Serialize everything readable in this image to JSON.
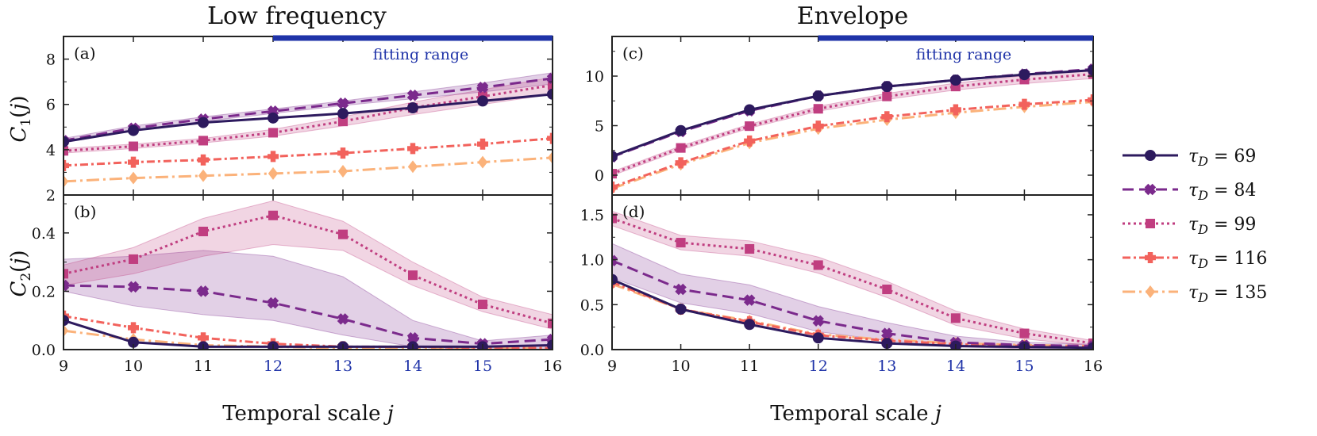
{
  "columns": [
    {
      "title": "Low frequency",
      "xlabel": "Temporal scale j"
    },
    {
      "title": "Envelope",
      "xlabel": "Temporal scale j"
    }
  ],
  "fitting_range_label": "fitting range",
  "colors": {
    "tau_69": "#2d1a5e",
    "tau_84": "#7b2a8c",
    "tau_99": "#c03e80",
    "tau_116": "#f2625c",
    "tau_135": "#fbb27a",
    "fitting_range": "#1f33a8"
  },
  "legend": [
    {
      "label": "τ_D = 69",
      "marker": "circle",
      "dash": "solid"
    },
    {
      "label": "τ_D = 84",
      "marker": "x-cross",
      "dash": "dashed"
    },
    {
      "label": "τ_D = 99",
      "marker": "square",
      "dash": "dotted"
    },
    {
      "label": "τ_D = 116",
      "marker": "plus",
      "dash": "dashdot"
    },
    {
      "label": "τ_D = 135",
      "marker": "diamond",
      "dash": "longdashdot"
    }
  ],
  "chart_data": [
    {
      "panel": "(a)",
      "type": "line",
      "title": "Low frequency",
      "ylabel": "C_1(j)",
      "ylim": [
        2,
        9
      ],
      "yticks": [
        2,
        4,
        6,
        8
      ],
      "x": [
        9,
        10,
        11,
        12,
        13,
        14,
        15,
        16
      ],
      "xlim": [
        9,
        16
      ],
      "fitting_range": [
        12,
        16
      ],
      "series": [
        {
          "name": "τ_D = 69",
          "values": [
            4.35,
            4.85,
            5.2,
            5.4,
            5.6,
            5.85,
            6.15,
            6.45
          ]
        },
        {
          "name": "τ_D = 84",
          "values": [
            4.4,
            4.95,
            5.35,
            5.7,
            6.05,
            6.4,
            6.75,
            7.15
          ],
          "band": [
            [
              4.3,
              4.5
            ],
            [
              4.85,
              5.05
            ],
            [
              5.25,
              5.45
            ],
            [
              5.6,
              5.8
            ],
            [
              5.95,
              6.15
            ],
            [
              6.25,
              6.55
            ],
            [
              6.55,
              6.95
            ],
            [
              6.9,
              7.4
            ]
          ]
        },
        {
          "name": "τ_D = 99",
          "values": [
            3.95,
            4.15,
            4.4,
            4.75,
            5.25,
            5.85,
            6.35,
            6.85
          ],
          "band": [
            [
              3.85,
              4.05
            ],
            [
              4.05,
              4.25
            ],
            [
              4.3,
              4.5
            ],
            [
              4.6,
              4.9
            ],
            [
              5.05,
              5.45
            ],
            [
              5.55,
              6.1
            ],
            [
              6.0,
              6.65
            ],
            [
              6.45,
              7.2
            ]
          ]
        },
        {
          "name": "τ_D = 116",
          "values": [
            3.3,
            3.45,
            3.55,
            3.7,
            3.85,
            4.05,
            4.25,
            4.5
          ]
        },
        {
          "name": "τ_D = 135",
          "values": [
            2.6,
            2.75,
            2.85,
            2.95,
            3.05,
            3.25,
            3.45,
            3.65
          ]
        }
      ]
    },
    {
      "panel": "(b)",
      "type": "line",
      "ylabel": "C_2(j)",
      "ylim": [
        0,
        0.53
      ],
      "yticks": [
        0.0,
        0.2,
        0.4
      ],
      "x": [
        9,
        10,
        11,
        12,
        13,
        14,
        15,
        16
      ],
      "xlim": [
        9,
        16
      ],
      "xlabel": "Temporal scale j",
      "series": [
        {
          "name": "τ_D = 69",
          "values": [
            0.1,
            0.025,
            0.01,
            0.01,
            0.01,
            0.01,
            0.01,
            0.015
          ]
        },
        {
          "name": "τ_D = 84",
          "values": [
            0.22,
            0.215,
            0.2,
            0.16,
            0.105,
            0.04,
            0.02,
            0.035
          ],
          "band": [
            [
              0.2,
              0.31
            ],
            [
              0.15,
              0.32
            ],
            [
              0.12,
              0.34
            ],
            [
              0.1,
              0.32
            ],
            [
              0.05,
              0.25
            ],
            [
              0.01,
              0.1
            ],
            [
              0.0,
              0.03
            ],
            [
              0.0,
              0.05
            ]
          ]
        },
        {
          "name": "τ_D = 99",
          "values": [
            0.26,
            0.31,
            0.405,
            0.46,
            0.395,
            0.255,
            0.155,
            0.09
          ],
          "band": [
            [
              0.22,
              0.29
            ],
            [
              0.26,
              0.35
            ],
            [
              0.32,
              0.45
            ],
            [
              0.36,
              0.51
            ],
            [
              0.34,
              0.44
            ],
            [
              0.22,
              0.3
            ],
            [
              0.13,
              0.18
            ],
            [
              0.07,
              0.12
            ]
          ]
        },
        {
          "name": "τ_D = 116",
          "values": [
            0.115,
            0.075,
            0.04,
            0.02,
            0.01,
            0.01,
            0.005,
            0.005
          ]
        },
        {
          "name": "τ_D = 135",
          "values": [
            0.065,
            0.035,
            0.015,
            0.01,
            0.005,
            0.005,
            0.005,
            0.005
          ]
        }
      ]
    },
    {
      "panel": "(c)",
      "type": "line",
      "title": "Envelope",
      "ylim": [
        -2,
        14
      ],
      "yticks": [
        0,
        5,
        10
      ],
      "x": [
        9,
        10,
        11,
        12,
        13,
        14,
        15,
        16
      ],
      "xlim": [
        9,
        16
      ],
      "fitting_range": [
        12,
        16
      ],
      "series": [
        {
          "name": "τ_D = 69",
          "values": [
            1.9,
            4.5,
            6.6,
            8.0,
            8.95,
            9.6,
            10.15,
            10.6
          ]
        },
        {
          "name": "τ_D = 84",
          "values": [
            1.85,
            4.4,
            6.5,
            8.0,
            8.95,
            9.6,
            10.2,
            10.7
          ]
        },
        {
          "name": "τ_D = 99",
          "values": [
            0.15,
            2.75,
            4.95,
            6.7,
            7.95,
            8.95,
            9.65,
            10.2
          ],
          "band": [
            [
              -0.05,
              0.35
            ],
            [
              2.55,
              2.95
            ],
            [
              4.75,
              5.15
            ],
            [
              6.45,
              6.95
            ],
            [
              7.65,
              8.25
            ],
            [
              8.6,
              9.3
            ],
            [
              9.25,
              10.05
            ],
            [
              9.75,
              10.65
            ]
          ]
        },
        {
          "name": "τ_D = 116",
          "values": [
            -1.2,
            1.25,
            3.45,
            4.95,
            5.9,
            6.6,
            7.15,
            7.6
          ]
        },
        {
          "name": "τ_D = 135",
          "values": [
            -1.35,
            1.1,
            3.25,
            4.7,
            5.6,
            6.3,
            6.9,
            7.4
          ]
        }
      ]
    },
    {
      "panel": "(d)",
      "type": "line",
      "ylim": [
        0,
        1.72
      ],
      "yticks": [
        0.0,
        0.5,
        1.0,
        1.5
      ],
      "x": [
        9,
        10,
        11,
        12,
        13,
        14,
        15,
        16
      ],
      "xlim": [
        9,
        16
      ],
      "xlabel": "Temporal scale j",
      "series": [
        {
          "name": "τ_D = 69",
          "values": [
            0.78,
            0.45,
            0.28,
            0.13,
            0.07,
            0.04,
            0.03,
            0.02
          ]
        },
        {
          "name": "τ_D = 84",
          "values": [
            0.99,
            0.67,
            0.55,
            0.32,
            0.18,
            0.08,
            0.05,
            0.04
          ],
          "band": [
            [
              0.8,
              1.18
            ],
            [
              0.52,
              0.84
            ],
            [
              0.4,
              0.72
            ],
            [
              0.2,
              0.48
            ],
            [
              0.1,
              0.3
            ],
            [
              0.03,
              0.15
            ],
            [
              0.01,
              0.08
            ],
            [
              0.0,
              0.06
            ]
          ]
        },
        {
          "name": "τ_D = 99",
          "values": [
            1.46,
            1.19,
            1.12,
            0.94,
            0.67,
            0.35,
            0.18,
            0.07
          ],
          "band": [
            [
              1.38,
              1.54
            ],
            [
              1.11,
              1.27
            ],
            [
              1.04,
              1.21
            ],
            [
              0.85,
              1.03
            ],
            [
              0.58,
              0.76
            ],
            [
              0.27,
              0.43
            ],
            [
              0.12,
              0.23
            ],
            [
              0.04,
              0.1
            ]
          ]
        },
        {
          "name": "τ_D = 116",
          "values": [
            0.75,
            0.45,
            0.31,
            0.16,
            0.1,
            0.06,
            0.04,
            0.03
          ]
        },
        {
          "name": "τ_D = 135",
          "values": [
            0.73,
            0.45,
            0.32,
            0.17,
            0.11,
            0.07,
            0.05,
            0.04
          ]
        }
      ]
    }
  ]
}
